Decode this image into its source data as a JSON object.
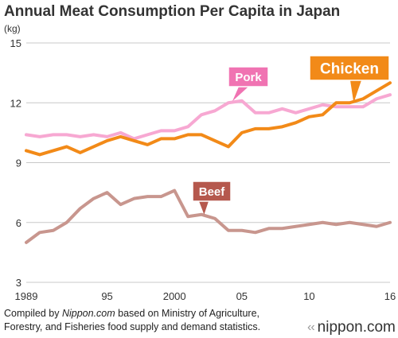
{
  "chart_data": {
    "type": "line",
    "title": "Annual Meat Consumption Per Capita in Japan",
    "unit_label": "(kg)",
    "xlim": [
      1989,
      2016
    ],
    "ylim": [
      3,
      15
    ],
    "y_ticks": [
      3,
      6,
      9,
      12,
      15
    ],
    "x_ticks": [
      {
        "value": 1989,
        "label": "1989"
      },
      {
        "value": 1995,
        "label": "95"
      },
      {
        "value": 2000,
        "label": "2000"
      },
      {
        "value": 2005,
        "label": "05"
      },
      {
        "value": 2010,
        "label": "10"
      },
      {
        "value": 2016,
        "label": "16"
      }
    ],
    "grid": "horizontal",
    "x": [
      1989,
      1990,
      1991,
      1992,
      1993,
      1994,
      1995,
      1996,
      1997,
      1998,
      1999,
      2000,
      2001,
      2002,
      2003,
      2004,
      2005,
      2006,
      2007,
      2008,
      2009,
      2010,
      2011,
      2012,
      2013,
      2014,
      2015,
      2016
    ],
    "series": [
      {
        "name": "Pork",
        "color": "#f7a8d2",
        "label_bg": "#f073b2",
        "values": [
          10.4,
          10.3,
          10.4,
          10.4,
          10.3,
          10.4,
          10.3,
          10.5,
          10.2,
          10.4,
          10.6,
          10.6,
          10.8,
          11.4,
          11.6,
          12.0,
          12.1,
          11.5,
          11.5,
          11.7,
          11.5,
          11.7,
          11.9,
          11.8,
          11.8,
          11.8,
          12.2,
          12.4
        ]
      },
      {
        "name": "Chicken",
        "color": "#f28a18",
        "label_bg": "#f28a18",
        "values": [
          9.6,
          9.4,
          9.6,
          9.8,
          9.5,
          9.8,
          10.1,
          10.3,
          10.1,
          9.9,
          10.2,
          10.2,
          10.4,
          10.4,
          10.1,
          9.8,
          10.5,
          10.7,
          10.7,
          10.8,
          11.0,
          11.3,
          11.4,
          12.0,
          12.0,
          12.2,
          12.6,
          13.0
        ]
      },
      {
        "name": "Beef",
        "color": "#c8968e",
        "label_bg": "#b5584d",
        "values": [
          5.0,
          5.5,
          5.6,
          6.0,
          6.7,
          7.2,
          7.5,
          6.9,
          7.2,
          7.3,
          7.3,
          7.6,
          6.3,
          6.4,
          6.2,
          5.6,
          5.6,
          5.5,
          5.7,
          5.7,
          5.8,
          5.9,
          6.0,
          5.9,
          6.0,
          5.9,
          5.8,
          6.0
        ]
      }
    ]
  },
  "footer": {
    "prefix": "Compiled by ",
    "source_name": "Nippon.com",
    "line1_rest": " based on Ministry of Agriculture,",
    "line2": "Forestry, and Fisheries food supply and demand statistics."
  },
  "brand": {
    "text": "nippon.com",
    "mark_icon": "nippon-logo-mark-icon"
  }
}
